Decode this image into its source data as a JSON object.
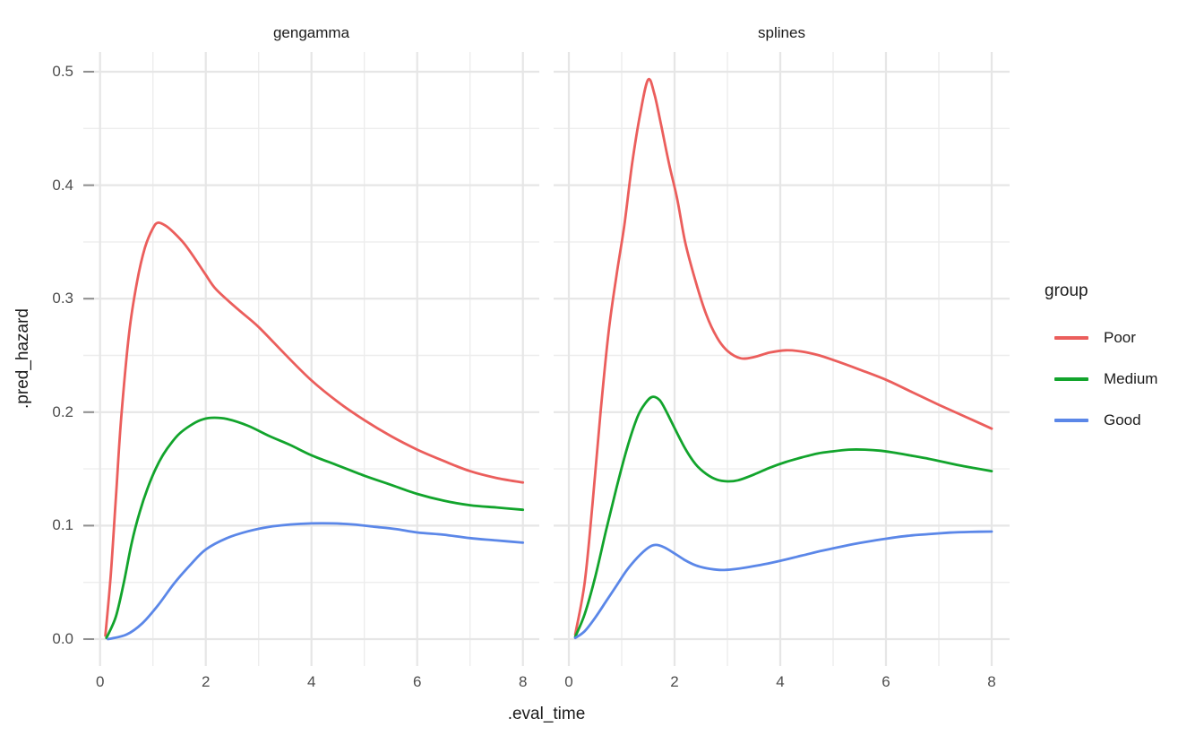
{
  "chart_data": {
    "type": "line",
    "xlabel": ".eval_time",
    "ylabel": ".pred_hazard",
    "grid": true,
    "legend_position": "right",
    "x_range": [
      -0.32,
      8.31
    ],
    "y_range": [
      -0.024,
      0.517
    ],
    "x_ticks": [
      {
        "v": 0,
        "label": "0"
      },
      {
        "v": 2,
        "label": "2"
      },
      {
        "v": 4,
        "label": "4"
      },
      {
        "v": 6,
        "label": "6"
      },
      {
        "v": 8,
        "label": "8"
      }
    ],
    "y_ticks": [
      {
        "v": 0,
        "label": "0.0"
      },
      {
        "v": 0.1,
        "label": "0.1"
      },
      {
        "v": 0.2,
        "label": "0.2"
      },
      {
        "v": 0.3,
        "label": "0.3"
      },
      {
        "v": 0.4,
        "label": "0.4"
      },
      {
        "v": 0.5,
        "label": "0.5"
      }
    ],
    "x_minor": [
      1,
      3,
      5,
      7
    ],
    "y_minor": [
      0.05,
      0.15,
      0.25,
      0.35,
      0.45
    ],
    "facets": [
      {
        "title": "gengamma",
        "series": [
          {
            "name": "Poor",
            "color": "#EB5E5C",
            "points": [
              [
                0.1,
                0.003
              ],
              [
                0.2,
                0.055
              ],
              [
                0.3,
                0.125
              ],
              [
                0.4,
                0.195
              ],
              [
                0.55,
                0.27
              ],
              [
                0.7,
                0.315
              ],
              [
                0.85,
                0.345
              ],
              [
                1.0,
                0.362
              ],
              [
                1.1,
                0.367
              ],
              [
                1.25,
                0.364
              ],
              [
                1.4,
                0.358
              ],
              [
                1.6,
                0.348
              ],
              [
                1.8,
                0.335
              ],
              [
                2.0,
                0.321
              ],
              [
                2.2,
                0.308
              ],
              [
                2.6,
                0.291
              ],
              [
                3.0,
                0.275
              ],
              [
                3.5,
                0.251
              ],
              [
                4.0,
                0.228
              ],
              [
                4.5,
                0.209
              ],
              [
                5.0,
                0.193
              ],
              [
                5.5,
                0.179
              ],
              [
                6.0,
                0.167
              ],
              [
                6.5,
                0.157
              ],
              [
                7.0,
                0.148
              ],
              [
                7.5,
                0.142
              ],
              [
                8.0,
                0.138
              ]
            ]
          },
          {
            "name": "Medium",
            "color": "#12A42C",
            "points": [
              [
                0.12,
                0.001
              ],
              [
                0.3,
                0.02
              ],
              [
                0.45,
                0.05
              ],
              [
                0.6,
                0.085
              ],
              [
                0.75,
                0.112
              ],
              [
                0.9,
                0.133
              ],
              [
                1.05,
                0.15
              ],
              [
                1.2,
                0.163
              ],
              [
                1.35,
                0.173
              ],
              [
                1.5,
                0.181
              ],
              [
                1.7,
                0.188
              ],
              [
                1.9,
                0.193
              ],
              [
                2.1,
                0.195
              ],
              [
                2.4,
                0.194
              ],
              [
                2.8,
                0.188
              ],
              [
                3.2,
                0.179
              ],
              [
                3.6,
                0.171
              ],
              [
                4.0,
                0.162
              ],
              [
                4.5,
                0.153
              ],
              [
                5.0,
                0.144
              ],
              [
                5.5,
                0.136
              ],
              [
                6.0,
                0.128
              ],
              [
                6.5,
                0.122
              ],
              [
                7.0,
                0.118
              ],
              [
                7.5,
                0.116
              ],
              [
                8.0,
                0.114
              ]
            ]
          },
          {
            "name": "Good",
            "color": "#5B87E8",
            "points": [
              [
                0.15,
                0.0
              ],
              [
                0.5,
                0.004
              ],
              [
                0.8,
                0.014
              ],
              [
                1.1,
                0.03
              ],
              [
                1.4,
                0.049
              ],
              [
                1.7,
                0.065
              ],
              [
                2.0,
                0.079
              ],
              [
                2.4,
                0.089
              ],
              [
                2.8,
                0.095
              ],
              [
                3.2,
                0.099
              ],
              [
                3.6,
                0.101
              ],
              [
                4.0,
                0.102
              ],
              [
                4.4,
                0.102
              ],
              [
                4.8,
                0.101
              ],
              [
                5.2,
                0.099
              ],
              [
                5.6,
                0.097
              ],
              [
                6.0,
                0.094
              ],
              [
                6.5,
                0.092
              ],
              [
                7.0,
                0.089
              ],
              [
                7.5,
                0.087
              ],
              [
                8.0,
                0.085
              ]
            ]
          }
        ]
      },
      {
        "title": "splines",
        "series": [
          {
            "name": "Poor",
            "color": "#EB5E5C",
            "points": [
              [
                0.12,
                0.004
              ],
              [
                0.3,
                0.05
              ],
              [
                0.45,
                0.12
              ],
              [
                0.6,
                0.2
              ],
              [
                0.75,
                0.27
              ],
              [
                0.9,
                0.32
              ],
              [
                1.05,
                0.365
              ],
              [
                1.2,
                0.42
              ],
              [
                1.35,
                0.463
              ],
              [
                1.5,
                0.493
              ],
              [
                1.62,
                0.48
              ],
              [
                1.75,
                0.452
              ],
              [
                1.9,
                0.418
              ],
              [
                2.05,
                0.388
              ],
              [
                2.2,
                0.35
              ],
              [
                2.4,
                0.315
              ],
              [
                2.6,
                0.286
              ],
              [
                2.8,
                0.266
              ],
              [
                3.0,
                0.254
              ],
              [
                3.25,
                0.2475
              ],
              [
                3.5,
                0.2485
              ],
              [
                3.8,
                0.2525
              ],
              [
                4.1,
                0.2545
              ],
              [
                4.4,
                0.2535
              ],
              [
                4.7,
                0.2505
              ],
              [
                5.0,
                0.246
              ],
              [
                5.5,
                0.2375
              ],
              [
                6.0,
                0.2285
              ],
              [
                6.5,
                0.2175
              ],
              [
                7.0,
                0.2065
              ],
              [
                7.5,
                0.196
              ],
              [
                8.0,
                0.1855
              ]
            ]
          },
          {
            "name": "Medium",
            "color": "#12A42C",
            "points": [
              [
                0.12,
                0.002
              ],
              [
                0.3,
                0.022
              ],
              [
                0.5,
                0.055
              ],
              [
                0.7,
                0.095
              ],
              [
                0.9,
                0.133
              ],
              [
                1.1,
                0.168
              ],
              [
                1.3,
                0.196
              ],
              [
                1.45,
                0.208
              ],
              [
                1.58,
                0.2135
              ],
              [
                1.72,
                0.2105
              ],
              [
                1.85,
                0.2
              ],
              [
                2.0,
                0.186
              ],
              [
                2.2,
                0.168
              ],
              [
                2.4,
                0.154
              ],
              [
                2.6,
                0.1455
              ],
              [
                2.8,
                0.1405
              ],
              [
                3.0,
                0.139
              ],
              [
                3.2,
                0.14
              ],
              [
                3.5,
                0.145
              ],
              [
                3.8,
                0.151
              ],
              [
                4.1,
                0.156
              ],
              [
                4.4,
                0.16
              ],
              [
                4.7,
                0.1635
              ],
              [
                5.0,
                0.1655
              ],
              [
                5.3,
                0.167
              ],
              [
                5.6,
                0.167
              ],
              [
                5.9,
                0.166
              ],
              [
                6.2,
                0.164
              ],
              [
                6.5,
                0.1615
              ],
              [
                6.8,
                0.159
              ],
              [
                7.1,
                0.156
              ],
              [
                7.4,
                0.153
              ],
              [
                7.7,
                0.1505
              ],
              [
                8.0,
                0.148
              ]
            ]
          },
          {
            "name": "Good",
            "color": "#5B87E8",
            "points": [
              [
                0.12,
                0.001
              ],
              [
                0.3,
                0.007
              ],
              [
                0.5,
                0.019
              ],
              [
                0.7,
                0.033
              ],
              [
                0.9,
                0.047
              ],
              [
                1.1,
                0.061
              ],
              [
                1.3,
                0.072
              ],
              [
                1.5,
                0.0805
              ],
              [
                1.64,
                0.083
              ],
              [
                1.8,
                0.081
              ],
              [
                2.0,
                0.0755
              ],
              [
                2.2,
                0.0695
              ],
              [
                2.4,
                0.065
              ],
              [
                2.6,
                0.0625
              ],
              [
                2.85,
                0.061
              ],
              [
                3.1,
                0.0615
              ],
              [
                3.4,
                0.0635
              ],
              [
                3.7,
                0.066
              ],
              [
                4.0,
                0.069
              ],
              [
                4.4,
                0.0735
              ],
              [
                4.8,
                0.078
              ],
              [
                5.2,
                0.082
              ],
              [
                5.6,
                0.0855
              ],
              [
                6.0,
                0.0885
              ],
              [
                6.4,
                0.091
              ],
              [
                6.8,
                0.0925
              ],
              [
                7.2,
                0.0938
              ],
              [
                7.6,
                0.0945
              ],
              [
                8.0,
                0.0948
              ]
            ]
          }
        ]
      }
    ],
    "colors": {
      "grid_major": "#E6E6E6",
      "grid_minor": "#EDEDED",
      "axis_tick": "#8F8F8F",
      "tick_text": "#4D4D4D",
      "title_text": "#1A1A1A"
    }
  },
  "legend": {
    "title": "group",
    "items": [
      {
        "label": "Poor",
        "color": "#EB5E5C"
      },
      {
        "label": "Medium",
        "color": "#12A42C"
      },
      {
        "label": "Good",
        "color": "#5B87E8"
      }
    ]
  }
}
